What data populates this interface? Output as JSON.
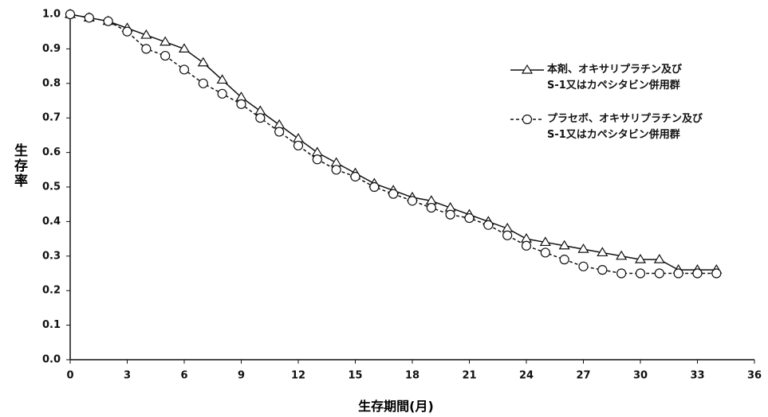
{
  "chart_data": {
    "type": "line",
    "y_label": "生存率",
    "x_label": "生存期間(月)",
    "xlim": [
      0,
      36
    ],
    "xticks": [
      0,
      3,
      6,
      9,
      12,
      15,
      18,
      21,
      24,
      27,
      30,
      33,
      36
    ],
    "ylim": [
      0,
      1
    ],
    "yticks": [
      {
        "value": 0,
        "label": "0.0"
      },
      0.1,
      0.2,
      0.3,
      0.4,
      0.5,
      0.6,
      0.7,
      0.8,
      0.9,
      {
        "value": 1,
        "label": "1.0"
      }
    ],
    "series": [
      {
        "name": "本剤、オキサリプラチン及び\nS-1又はカペシタビン併用群",
        "color": "#111111",
        "line_style": "solid",
        "marker": "triangle",
        "x": [
          0,
          1,
          2,
          3,
          4,
          5,
          6,
          7,
          8,
          9,
          10,
          11,
          12,
          13,
          14,
          15,
          16,
          17,
          18,
          19,
          20,
          21,
          22,
          23,
          24,
          25,
          26,
          27,
          28,
          29,
          30,
          31,
          32,
          33,
          34
        ],
        "values": [
          1.0,
          0.99,
          0.98,
          0.96,
          0.94,
          0.92,
          0.9,
          0.86,
          0.81,
          0.76,
          0.72,
          0.68,
          0.64,
          0.6,
          0.57,
          0.54,
          0.51,
          0.49,
          0.47,
          0.46,
          0.44,
          0.42,
          0.4,
          0.38,
          0.35,
          0.34,
          0.33,
          0.32,
          0.31,
          0.3,
          0.29,
          0.29,
          0.26,
          0.26,
          0.26
        ]
      },
      {
        "name": "プラセボ、オキサリプラチン及び\nS-1又はカペシタビン併用群",
        "color": "#111111",
        "line_style": "dashed",
        "marker": "circle",
        "x": [
          0,
          1,
          2,
          3,
          4,
          5,
          6,
          7,
          8,
          9,
          10,
          11,
          12,
          13,
          14,
          15,
          16,
          17,
          18,
          19,
          20,
          21,
          22,
          23,
          24,
          25,
          26,
          27,
          28,
          29,
          30,
          31,
          32,
          33,
          34
        ],
        "values": [
          1.0,
          0.99,
          0.98,
          0.95,
          0.9,
          0.88,
          0.84,
          0.8,
          0.77,
          0.74,
          0.7,
          0.66,
          0.62,
          0.58,
          0.55,
          0.53,
          0.5,
          0.48,
          0.46,
          0.44,
          0.42,
          0.41,
          0.39,
          0.36,
          0.33,
          0.31,
          0.29,
          0.27,
          0.26,
          0.25,
          0.25,
          0.25,
          0.25,
          0.25,
          0.25
        ]
      }
    ]
  }
}
